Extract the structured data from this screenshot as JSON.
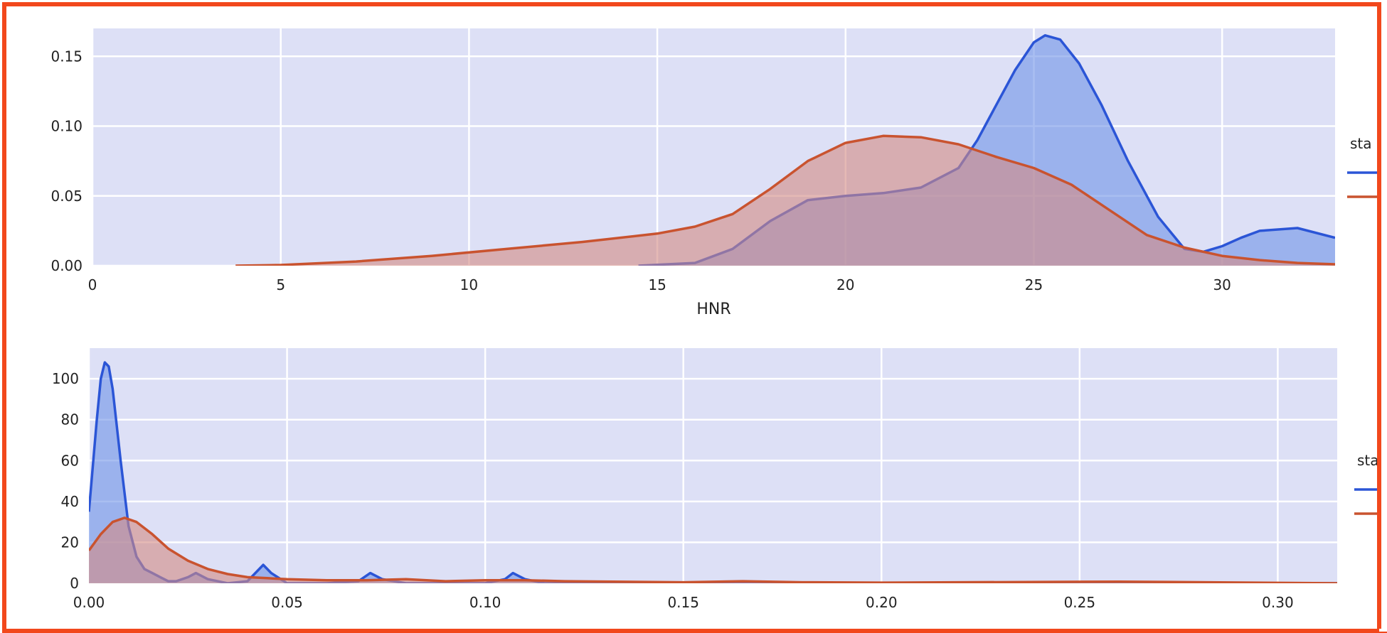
{
  "colors": {
    "frame": "#f2481c",
    "plot_bg": "#dde0f6",
    "grid": "#ffffff",
    "series_blue_line": "#2b55d6",
    "series_blue_fill": "#6f93e8",
    "series_red_line": "#c9532f",
    "series_red_fill": "#d48a84"
  },
  "chart_data": [
    {
      "type": "area",
      "subtype": "kde",
      "xlabel": "HNR",
      "ylabel": "",
      "xlim": [
        0,
        33
      ],
      "ylim": [
        0,
        0.17
      ],
      "xticks": [
        "0",
        "5",
        "10",
        "15",
        "20",
        "25",
        "30"
      ],
      "yticks": [
        "0.00",
        "0.05",
        "0.10",
        "0.15"
      ],
      "grid": true,
      "legend": {
        "title": "sta",
        "placement": "right, clipped",
        "entries": 2
      },
      "series": [
        {
          "color": "blue",
          "x": [
            14.5,
            16,
            17,
            18,
            19,
            20,
            21,
            22,
            23,
            23.5,
            24,
            24.5,
            25,
            25.3,
            25.7,
            26.2,
            26.8,
            27.5,
            28.3,
            29,
            29.5,
            30,
            30.5,
            31,
            32,
            33
          ],
          "y": [
            0,
            0.002,
            0.012,
            0.032,
            0.047,
            0.05,
            0.052,
            0.056,
            0.07,
            0.09,
            0.115,
            0.14,
            0.16,
            0.165,
            0.162,
            0.145,
            0.115,
            0.075,
            0.035,
            0.012,
            0.01,
            0.014,
            0.02,
            0.025,
            0.027,
            0.02
          ]
        },
        {
          "color": "red",
          "x": [
            3.8,
            5,
            7,
            9,
            11,
            13,
            15,
            16,
            17,
            18,
            19,
            20,
            21,
            22,
            23,
            24,
            25,
            26,
            27,
            28,
            29,
            30,
            31,
            32,
            33
          ],
          "y": [
            0,
            0.0005,
            0.003,
            0.007,
            0.012,
            0.017,
            0.023,
            0.028,
            0.037,
            0.055,
            0.075,
            0.088,
            0.093,
            0.092,
            0.087,
            0.078,
            0.07,
            0.058,
            0.04,
            0.022,
            0.013,
            0.007,
            0.004,
            0.002,
            0.001
          ]
        }
      ]
    },
    {
      "type": "area",
      "subtype": "kde",
      "xlabel": "",
      "ylabel": "",
      "xlim": [
        0,
        0.315
      ],
      "ylim": [
        0,
        115
      ],
      "xticks": [
        "0.00",
        "0.05",
        "0.10",
        "0.15",
        "0.20",
        "0.25",
        "0.30"
      ],
      "yticks": [
        "0",
        "20",
        "40",
        "60",
        "80",
        "100"
      ],
      "grid": true,
      "legend": {
        "title": "sta",
        "placement": "right, clipped",
        "entries": 2
      },
      "series": [
        {
          "color": "blue",
          "x": [
            0,
            0.002,
            0.003,
            0.004,
            0.005,
            0.006,
            0.008,
            0.01,
            0.012,
            0.014,
            0.016,
            0.018,
            0.02,
            0.022,
            0.025,
            0.027,
            0.03,
            0.035,
            0.04,
            0.042,
            0.044,
            0.046,
            0.05,
            0.06,
            0.068,
            0.071,
            0.074,
            0.08,
            0.1,
            0.105,
            0.107,
            0.11,
            0.115,
            0.2,
            0.315
          ],
          "y": [
            35,
            80,
            100,
            108,
            106,
            95,
            60,
            28,
            13,
            7,
            5,
            3,
            1,
            1,
            3,
            5,
            2,
            0,
            1,
            5,
            9,
            5,
            0,
            0,
            1,
            5,
            2,
            0,
            0,
            2,
            5,
            2,
            0,
            0,
            0
          ]
        },
        {
          "color": "red",
          "x": [
            0,
            0.003,
            0.006,
            0.009,
            0.012,
            0.016,
            0.02,
            0.025,
            0.03,
            0.035,
            0.04,
            0.045,
            0.05,
            0.06,
            0.07,
            0.08,
            0.09,
            0.1,
            0.11,
            0.12,
            0.15,
            0.165,
            0.18,
            0.2,
            0.26,
            0.3,
            0.315
          ],
          "y": [
            16,
            24,
            30,
            32,
            30,
            24,
            17,
            11,
            7,
            4.5,
            3,
            2.5,
            2,
            1.5,
            1.5,
            2,
            1,
            1.5,
            1.5,
            1,
            0.5,
            1,
            0.5,
            0.3,
            0.8,
            0.2,
            0
          ]
        }
      ]
    }
  ]
}
